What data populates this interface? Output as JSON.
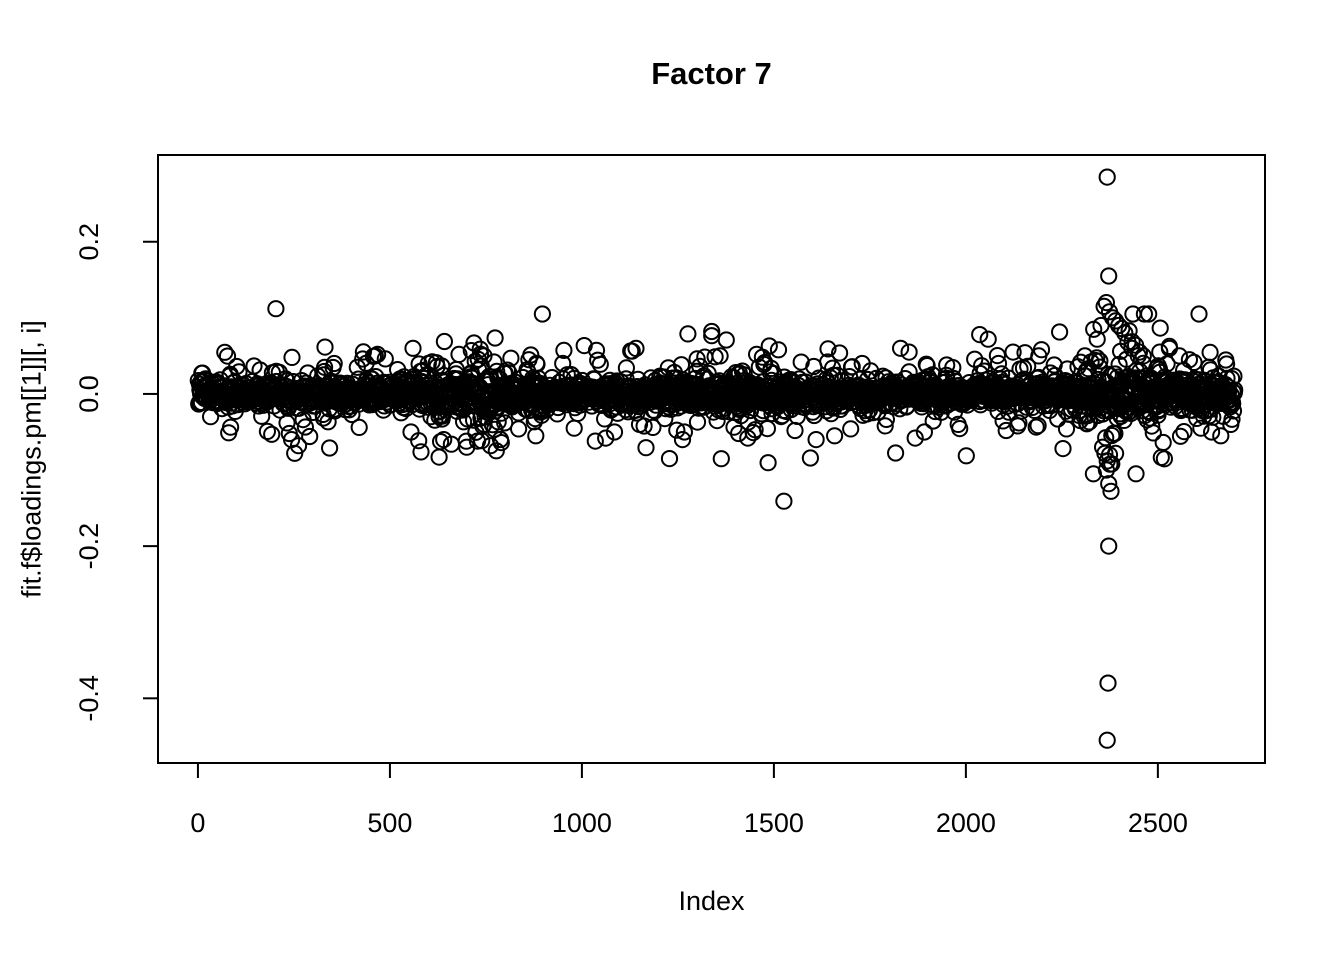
{
  "figure": {
    "background": "#ffffff",
    "foreground": "#000000"
  },
  "chart_data": {
    "type": "scatter",
    "title": "Factor 7",
    "xlabel": "Index",
    "ylabel": "fit.f$loadings.pm[[1]][, i]",
    "x_tick_values": [
      0,
      500,
      1000,
      1500,
      2000,
      2500
    ],
    "x_tick_labels": [
      "0",
      "500",
      "1000",
      "1500",
      "2000",
      "2500"
    ],
    "y_tick_values": [
      0.2,
      0.0,
      -0.2,
      -0.4
    ],
    "y_tick_labels": [
      "0.2",
      "0.0",
      "-0.2",
      "-0.4"
    ],
    "xlim": [
      -104,
      2779
    ],
    "ylim": [
      -0.485,
      0.314
    ],
    "grid": false,
    "legend": "none",
    "n_points": 2700,
    "marker": {
      "shape": "open-circle",
      "radius_px": 7.6,
      "stroke": "#000000",
      "stroke_width_px": 2,
      "fill": "none"
    },
    "band": {
      "center": 0.0,
      "core_sd": 0.0075,
      "core_fraction": 0.62,
      "mid_sd": 0.014,
      "mid_fraction": 0.28,
      "wide_sd": 0.032,
      "wide_fraction": 0.1,
      "clip_abs": 0.105,
      "seed": 7
    },
    "spread_regions": [
      {
        "x_min": 580,
        "x_max": 900,
        "sd_mult": 1.7
      },
      {
        "x_min": 1200,
        "x_max": 1700,
        "sd_mult": 1.25
      },
      {
        "x_min": 2280,
        "x_max": 2520,
        "sd_mult": 2.4
      },
      {
        "x_min": 2520,
        "x_max": 2700,
        "sd_mult": 1.4
      }
    ],
    "outliers": [
      [
        203,
        0.112
      ],
      [
        245,
        0.048
      ],
      [
        232,
        -0.038
      ],
      [
        238,
        -0.052
      ],
      [
        244,
        -0.06
      ],
      [
        252,
        -0.078
      ],
      [
        262,
        -0.068
      ],
      [
        330,
        0.035
      ],
      [
        355,
        0.04
      ],
      [
        415,
        0.035
      ],
      [
        420,
        -0.044
      ],
      [
        468,
        0.052
      ],
      [
        488,
        0.046
      ],
      [
        520,
        0.032
      ],
      [
        555,
        -0.05
      ],
      [
        600,
        0.04
      ],
      [
        628,
        -0.083
      ],
      [
        640,
        -0.06
      ],
      [
        660,
        -0.066
      ],
      [
        680,
        0.052
      ],
      [
        700,
        -0.07
      ],
      [
        712,
        0.057
      ],
      [
        728,
        -0.062
      ],
      [
        745,
        0.05
      ],
      [
        762,
        -0.068
      ],
      [
        790,
        -0.064
      ],
      [
        815,
        0.047
      ],
      [
        835,
        -0.046
      ],
      [
        862,
        0.045
      ],
      [
        880,
        -0.055
      ],
      [
        950,
        0.04
      ],
      [
        980,
        -0.045
      ],
      [
        1035,
        -0.062
      ],
      [
        1062,
        -0.058
      ],
      [
        1085,
        -0.05
      ],
      [
        1150,
        -0.04
      ],
      [
        1185,
        -0.044
      ],
      [
        1228,
        -0.085
      ],
      [
        1262,
        -0.06
      ],
      [
        1300,
        0.046
      ],
      [
        1338,
        0.082
      ],
      [
        1360,
        0.05
      ],
      [
        1408,
        -0.052
      ],
      [
        1432,
        -0.058
      ],
      [
        1488,
        0.063
      ],
      [
        1512,
        0.058
      ],
      [
        1526,
        -0.141
      ],
      [
        1555,
        -0.048
      ],
      [
        1610,
        -0.06
      ],
      [
        1640,
        0.042
      ],
      [
        1658,
        -0.055
      ],
      [
        1700,
        -0.046
      ],
      [
        1730,
        0.04
      ],
      [
        1790,
        -0.042
      ],
      [
        1830,
        0.06
      ],
      [
        1852,
        0.055
      ],
      [
        1868,
        -0.058
      ],
      [
        1892,
        -0.05
      ],
      [
        1950,
        0.038
      ],
      [
        1980,
        -0.04
      ],
      [
        2036,
        0.078
      ],
      [
        2058,
        0.072
      ],
      [
        2085,
        0.04
      ],
      [
        2105,
        -0.048
      ],
      [
        2135,
        -0.042
      ],
      [
        2190,
        0.05
      ],
      [
        2230,
        0.038
      ],
      [
        2262,
        -0.046
      ],
      [
        2310,
        0.05
      ],
      [
        2326,
        0.042
      ],
      [
        2342,
        0.072
      ],
      [
        2352,
        0.09
      ],
      [
        2360,
        0.115
      ],
      [
        2366,
        0.12
      ],
      [
        2374,
        0.108
      ],
      [
        2382,
        0.1
      ],
      [
        2390,
        0.096
      ],
      [
        2398,
        0.09
      ],
      [
        2406,
        0.086
      ],
      [
        2414,
        0.08
      ],
      [
        2422,
        0.068
      ],
      [
        2432,
        0.06
      ],
      [
        2442,
        0.064
      ],
      [
        2452,
        0.055
      ],
      [
        2462,
        0.05
      ],
      [
        2356,
        -0.07
      ],
      [
        2362,
        -0.078
      ],
      [
        2368,
        -0.088
      ],
      [
        2374,
        -0.08
      ],
      [
        2380,
        -0.092
      ],
      [
        2366,
        -0.1
      ],
      [
        2372,
        -0.118
      ],
      [
        2378,
        -0.128
      ],
      [
        2368,
        0.285
      ],
      [
        2372,
        0.155
      ],
      [
        2372,
        -0.2
      ],
      [
        2370,
        -0.38
      ],
      [
        2368,
        -0.455
      ],
      [
        2505,
        0.055
      ],
      [
        2530,
        0.06
      ],
      [
        2556,
        0.05
      ],
      [
        2582,
        0.045
      ],
      [
        2612,
        -0.045
      ],
      [
        2640,
        -0.05
      ],
      [
        2664,
        -0.055
      ],
      [
        2690,
        -0.04
      ]
    ]
  }
}
